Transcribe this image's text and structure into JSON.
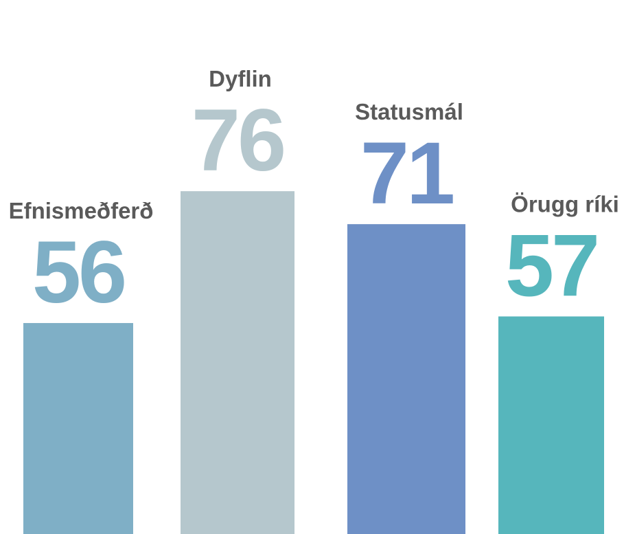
{
  "chart_data": {
    "type": "bar",
    "categories": [
      "Efnismeðferð",
      "Dyflin",
      "Statusmál",
      "Örugg ríki"
    ],
    "values": [
      56,
      76,
      71,
      57
    ],
    "colors": [
      "#7fafc6",
      "#b5c7cd",
      "#6e90c6",
      "#56b6bc"
    ],
    "ylim": [
      24,
      105
    ]
  }
}
